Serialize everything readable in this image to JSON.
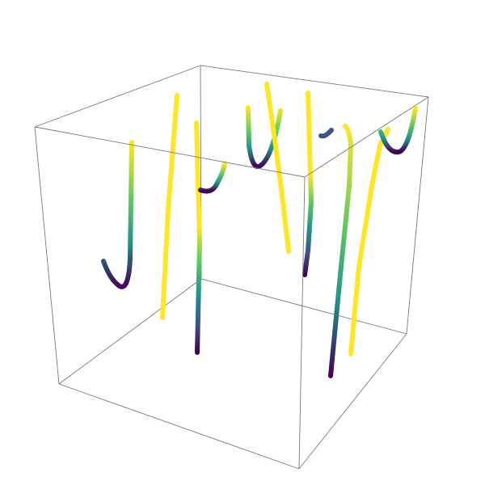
{
  "figure": {
    "kind": "3d-tube-plot",
    "background": "#ffffff",
    "box_edge_color": "#7a7a7a",
    "colormap": [
      "#440154",
      "#3b528b",
      "#21918c",
      "#5ec962",
      "#fde725"
    ],
    "tube_count": 14
  }
}
